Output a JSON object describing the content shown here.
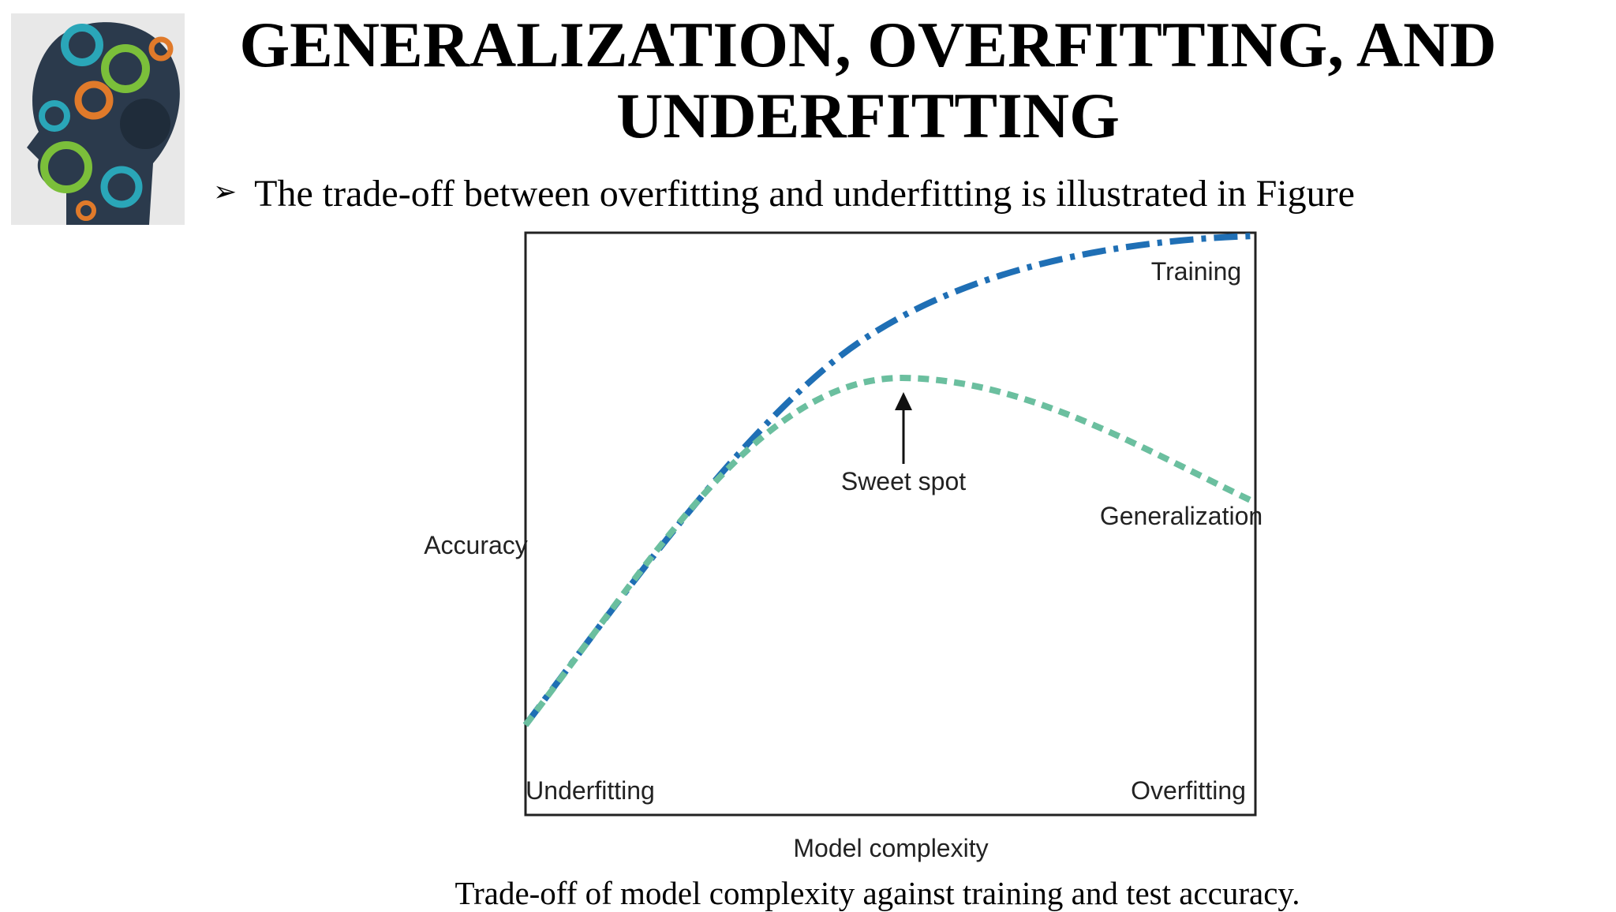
{
  "header": {
    "title": "GENERALIZATION, OVERFITTING, AND UNDERFITTING"
  },
  "bullet": "The trade-off between overfitting and underfitting is illustrated in Figure",
  "figure": {
    "curve_labels": [
      "Training",
      "Generalization"
    ],
    "sweet_spot": "Sweet spot",
    "y_label": "Accuracy",
    "x_label": "Model complexity",
    "left_label": "Underfitting",
    "right_label": "Overfitting"
  },
  "caption": "Trade-off of model complexity against training and test accuracy."
}
